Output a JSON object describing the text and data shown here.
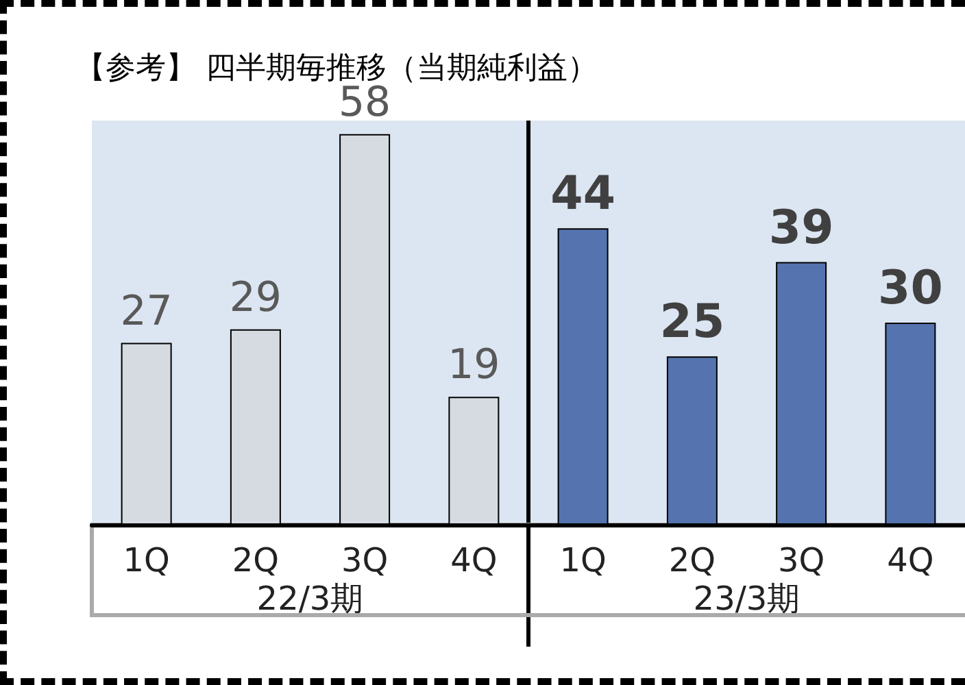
{
  "chart_data": {
    "type": "bar",
    "title": "【参考】 四半期毎推移（当期純利益）",
    "categories": [
      "1Q",
      "2Q",
      "3Q",
      "4Q",
      "1Q",
      "2Q",
      "3Q",
      "4Q"
    ],
    "values": [
      27,
      29,
      58,
      19,
      44,
      25,
      39,
      30
    ],
    "colors": [
      "#d6dbe2",
      "#d6dbe2",
      "#d6dbe2",
      "#d6dbe2",
      "#5573ae",
      "#5573ae",
      "#5573ae",
      "#5573ae"
    ],
    "annotations": [
      "22/3期",
      "23/3期"
    ],
    "data_labels": true
  }
}
